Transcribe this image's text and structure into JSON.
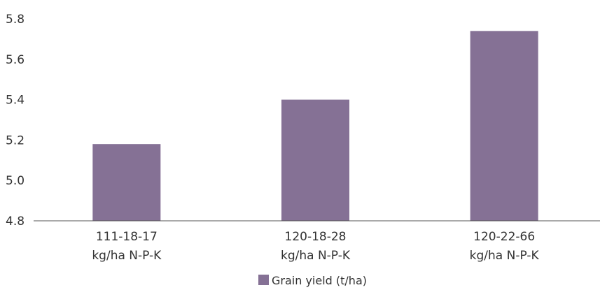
{
  "chart_data": {
    "type": "bar",
    "categories": [
      [
        "111-18-17",
        "kg/ha N-P-K"
      ],
      [
        "120-18-28",
        "kg/ha N-P-K"
      ],
      [
        "120-22-66",
        "kg/ha N-P-K"
      ]
    ],
    "series": [
      {
        "name": "Grain yield (t/ha)",
        "values": [
          5.18,
          5.4,
          5.74
        ],
        "color": "#857195"
      }
    ],
    "ylim": [
      4.8,
      5.8
    ],
    "yticks": [
      "4.8",
      "5.0",
      "5.2",
      "5.4",
      "5.6",
      "5.8"
    ],
    "grid": false,
    "legend_position": "bottom-center"
  }
}
